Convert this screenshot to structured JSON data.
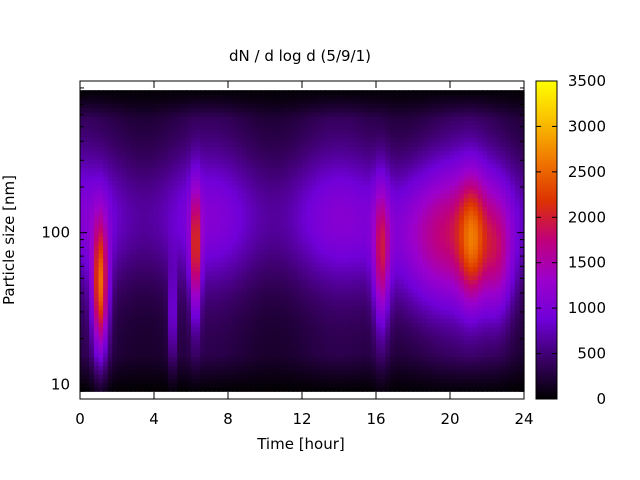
{
  "chart_data": {
    "type": "heatmap",
    "title": "dN / d log d (5/9/1)",
    "xlabel": "Time [hour]",
    "ylabel": "Particle size [nm]",
    "xlim": [
      0,
      24
    ],
    "ylim": [
      8,
      1000
    ],
    "yscale": "log",
    "x_ticks": [
      0,
      4,
      8,
      12,
      16,
      20,
      24
    ],
    "x_tick_labels": [
      "0",
      "4",
      "8",
      "12",
      "16",
      "20",
      "24"
    ],
    "y_ticks": [
      10,
      100
    ],
    "y_tick_labels": [
      "10",
      "100"
    ],
    "colorbar": {
      "range": [
        0,
        3500
      ],
      "ticks": [
        0,
        500,
        1000,
        1500,
        2000,
        2500,
        3000,
        3500
      ],
      "tick_labels": [
        "0",
        "500",
        "1000",
        "1500",
        "2000",
        "2500",
        "3000",
        "3500"
      ],
      "colormap": [
        "#000000",
        "#3a0066",
        "#7000d8",
        "#9c00cc",
        "#c0007a",
        "#dd3300",
        "#f07800",
        "#fabf00",
        "#ffff00"
      ]
    },
    "background_level": 900,
    "events": [
      {
        "t": 1.1,
        "d": 42,
        "amp": 2000,
        "st": 0.3,
        "sd": 0.3
      },
      {
        "t": 5.0,
        "d": 28,
        "amp": 700,
        "st": 0.15,
        "sd": 0.22
      },
      {
        "t": 6.25,
        "d": 70,
        "amp": 1400,
        "st": 0.2,
        "sd": 0.3
      },
      {
        "t": 16.3,
        "d": 65,
        "amp": 1100,
        "st": 0.3,
        "sd": 0.35
      },
      {
        "t": 19.5,
        "d": 80,
        "amp": 900,
        "st": 2.0,
        "sd": 0.35
      },
      {
        "t": 21.2,
        "d": 85,
        "amp": 1000,
        "st": 0.5,
        "sd": 0.3
      },
      {
        "t": 22.6,
        "d": 65,
        "amp": 800,
        "st": 0.6,
        "sd": 0.3
      }
    ]
  }
}
